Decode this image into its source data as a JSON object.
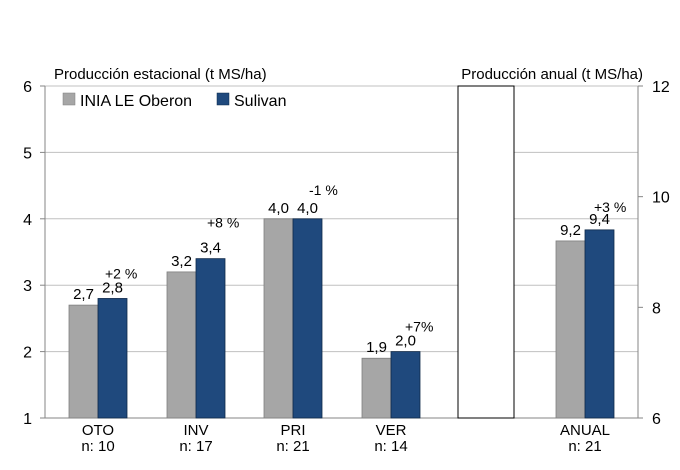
{
  "chart_data": {
    "type": "bar",
    "title": "",
    "left_axis_title": "Producción estacional (t MS/ha)",
    "right_axis_title": "Producción anual (t MS/ha)",
    "ylim_left": [
      1,
      6
    ],
    "yticks_left": [
      "1",
      "2",
      "3",
      "4",
      "5",
      "6"
    ],
    "ylim_right": [
      6,
      12
    ],
    "yticks_right": [
      "6",
      "8",
      "10",
      "12"
    ],
    "grid": "horizontal",
    "legend_position": "top-left",
    "colors": {
      "INIA LE Oberon": "#a6a6a6",
      "Sulivan": "#1f497d"
    },
    "categories": [
      {
        "name": "OTO",
        "n": "n: 10",
        "axis": "left",
        "values": [
          2.7,
          2.8
        ],
        "labels": [
          "2,7",
          "2,8"
        ],
        "change": "+2 %"
      },
      {
        "name": "INV",
        "n": "n: 17",
        "axis": "left",
        "values": [
          3.2,
          3.4
        ],
        "labels": [
          "3,2",
          "3,4"
        ],
        "change": "+8 %"
      },
      {
        "name": "PRI",
        "n": "n: 21",
        "axis": "left",
        "values": [
          4.0,
          4.0
        ],
        "labels": [
          "4,0",
          "4,0"
        ],
        "change": "-1 %"
      },
      {
        "name": "VER",
        "n": "n: 14",
        "axis": "left",
        "values": [
          1.9,
          2.0
        ],
        "labels": [
          "1,9",
          "2,0"
        ],
        "change": "+7%"
      },
      {
        "name": "ANUAL",
        "n": "n: 21",
        "axis": "right",
        "values": [
          9.2,
          9.4
        ],
        "labels": [
          "9,2",
          "9,4"
        ],
        "change": "+3 %"
      }
    ],
    "series": [
      {
        "name": "INIA LE Oberon"
      },
      {
        "name": "Sulivan"
      }
    ],
    "divider_box": {
      "axis": "right",
      "from": 6,
      "to": 12
    }
  }
}
